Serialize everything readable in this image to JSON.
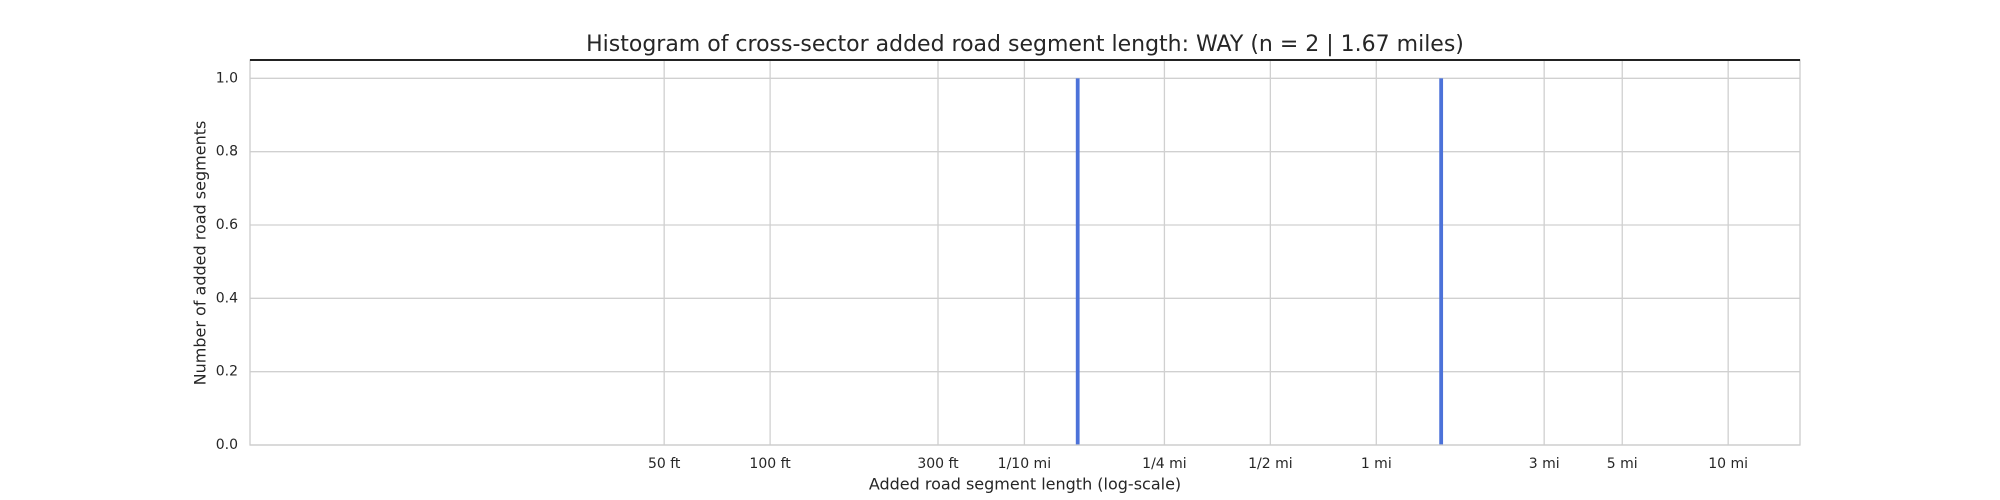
{
  "chart_data": {
    "type": "histogram",
    "title": "Histogram of cross-sector added road segment length: WAY (n = 2 | 1.67 miles)",
    "x_label": "Added road segment length (log-scale)",
    "y_label": "Number of added road segments",
    "bins": [
      0.14,
      0.1435,
      1.51,
      1.548
    ],
    "counts": [
      1,
      0,
      1
    ],
    "color": "#4c72d9",
    "xscale": "log",
    "xlim": [
      0.00063,
      16
    ],
    "xticks": [
      {
        "value": 0.00947,
        "label": "50 ft"
      },
      {
        "value": 0.01894,
        "label": "100 ft"
      },
      {
        "value": 0.05682,
        "label": "300 ft"
      },
      {
        "value": 0.1,
        "label": "1/10 mi"
      },
      {
        "value": 0.25,
        "label": "1/4 mi"
      },
      {
        "value": 0.5,
        "label": "1/2 mi"
      },
      {
        "value": 1,
        "label": "1 mi"
      },
      {
        "value": 3,
        "label": "3 mi"
      },
      {
        "value": 5,
        "label": "5 mi"
      },
      {
        "value": 10,
        "label": "10 mi"
      }
    ],
    "ylim": [
      0,
      1.05
    ],
    "yticks": [
      {
        "value": 0,
        "label": "0.0"
      },
      {
        "value": 0.2,
        "label": "0.2"
      },
      {
        "value": 0.4,
        "label": "0.4"
      },
      {
        "value": 0.6,
        "label": "0.6"
      },
      {
        "value": 0.8,
        "label": "0.8"
      },
      {
        "value": 1,
        "label": "1.0"
      }
    ],
    "grid": true
  }
}
